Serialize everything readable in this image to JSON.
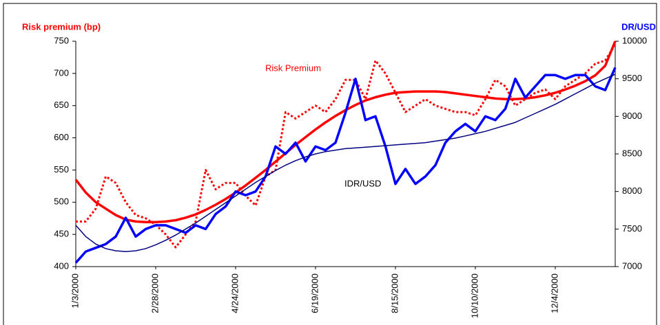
{
  "chart_data": {
    "type": "line",
    "y_label": "Risk premium (bp)",
    "y2_label": "DR/USD",
    "annotations": [
      "Risk Premium",
      "IDR/USD"
    ],
    "categories": [
      "1/3/2000",
      null,
      null,
      null,
      null,
      null,
      null,
      null,
      "2/28/2000",
      null,
      null,
      null,
      null,
      null,
      null,
      null,
      "4/24/2000",
      null,
      null,
      null,
      null,
      null,
      null,
      null,
      "6/19/2000",
      null,
      null,
      null,
      null,
      null,
      null,
      null,
      "8/15/2000",
      null,
      null,
      null,
      null,
      null,
      null,
      null,
      "10/10/2000",
      null,
      null,
      null,
      null,
      null,
      null,
      null,
      "12/4/2000",
      null,
      null,
      null,
      null,
      null,
      null
    ],
    "ylim": [
      400,
      750
    ],
    "yticks": [
      400,
      450,
      500,
      550,
      600,
      650,
      700,
      750
    ],
    "y2lim": [
      7000,
      10000
    ],
    "y2ticks": [
      7000,
      7500,
      8000,
      8500,
      9000,
      9500,
      10000
    ],
    "series": [
      {
        "name": "Risk Premium",
        "color": "#ff0000",
        "line_style": "dashed",
        "values": [
          470,
          470,
          490,
          540,
          530,
          500,
          480,
          475,
          465,
          450,
          430,
          450,
          470,
          550,
          520,
          530,
          530,
          510,
          495,
          540,
          550,
          640,
          630,
          640,
          650,
          640,
          660,
          690,
          690,
          660,
          720,
          700,
          670,
          640,
          650,
          660,
          650,
          645,
          640,
          640,
          635,
          660,
          690,
          680,
          650,
          660,
          670,
          675,
          660,
          680,
          690,
          700,
          715,
          720,
          745
        ]
      },
      {
        "color": "#ff0000",
        "line_style": "solid",
        "values": [
          535,
          515,
          500,
          490,
          480,
          473,
          470,
          469,
          469,
          470,
          472,
          476,
          481,
          488,
          496,
          505,
          515,
          526,
          538,
          550,
          563,
          576,
          589,
          601,
          613,
          624,
          634,
          643,
          651,
          658,
          663,
          667,
          670,
          671,
          672,
          672,
          672,
          671,
          669,
          667,
          665,
          663,
          661,
          660,
          660,
          661,
          663,
          666,
          670,
          675,
          681,
          688,
          697,
          712,
          750
        ]
      },
      {
        "name": "IDR/USD",
        "color": "#0000ff",
        "line_style": "solid",
        "axis": "y2",
        "values": [
          7050,
          7200,
          7250,
          7300,
          7400,
          7650,
          7400,
          7500,
          7550,
          7550,
          7500,
          7450,
          7550,
          7500,
          7700,
          7800,
          8000,
          7950,
          8000,
          8200,
          8600,
          8500,
          8650,
          8400,
          8600,
          8550,
          8650,
          9050,
          9500,
          8950,
          9000,
          8600,
          8100,
          8300,
          8100,
          8200,
          8350,
          8650,
          8800,
          8900,
          8800,
          9000,
          8950,
          9100,
          9500,
          9250,
          9400,
          9550,
          9550,
          9500,
          9550,
          9550,
          9400,
          9350,
          9650
        ]
      },
      {
        "color": "#000080",
        "line_style": "thin",
        "axis": "y2",
        "values": [
          7550,
          7400,
          7300,
          7240,
          7210,
          7200,
          7210,
          7240,
          7290,
          7350,
          7420,
          7500,
          7580,
          7670,
          7760,
          7850,
          7940,
          8030,
          8120,
          8200,
          8280,
          8350,
          8410,
          8460,
          8500,
          8530,
          8550,
          8570,
          8580,
          8590,
          8600,
          8610,
          8620,
          8630,
          8640,
          8650,
          8670,
          8690,
          8710,
          8740,
          8770,
          8800,
          8840,
          8880,
          8920,
          8980,
          9040,
          9100,
          9160,
          9230,
          9300,
          9370,
          9440,
          9500,
          9560
        ]
      }
    ]
  }
}
